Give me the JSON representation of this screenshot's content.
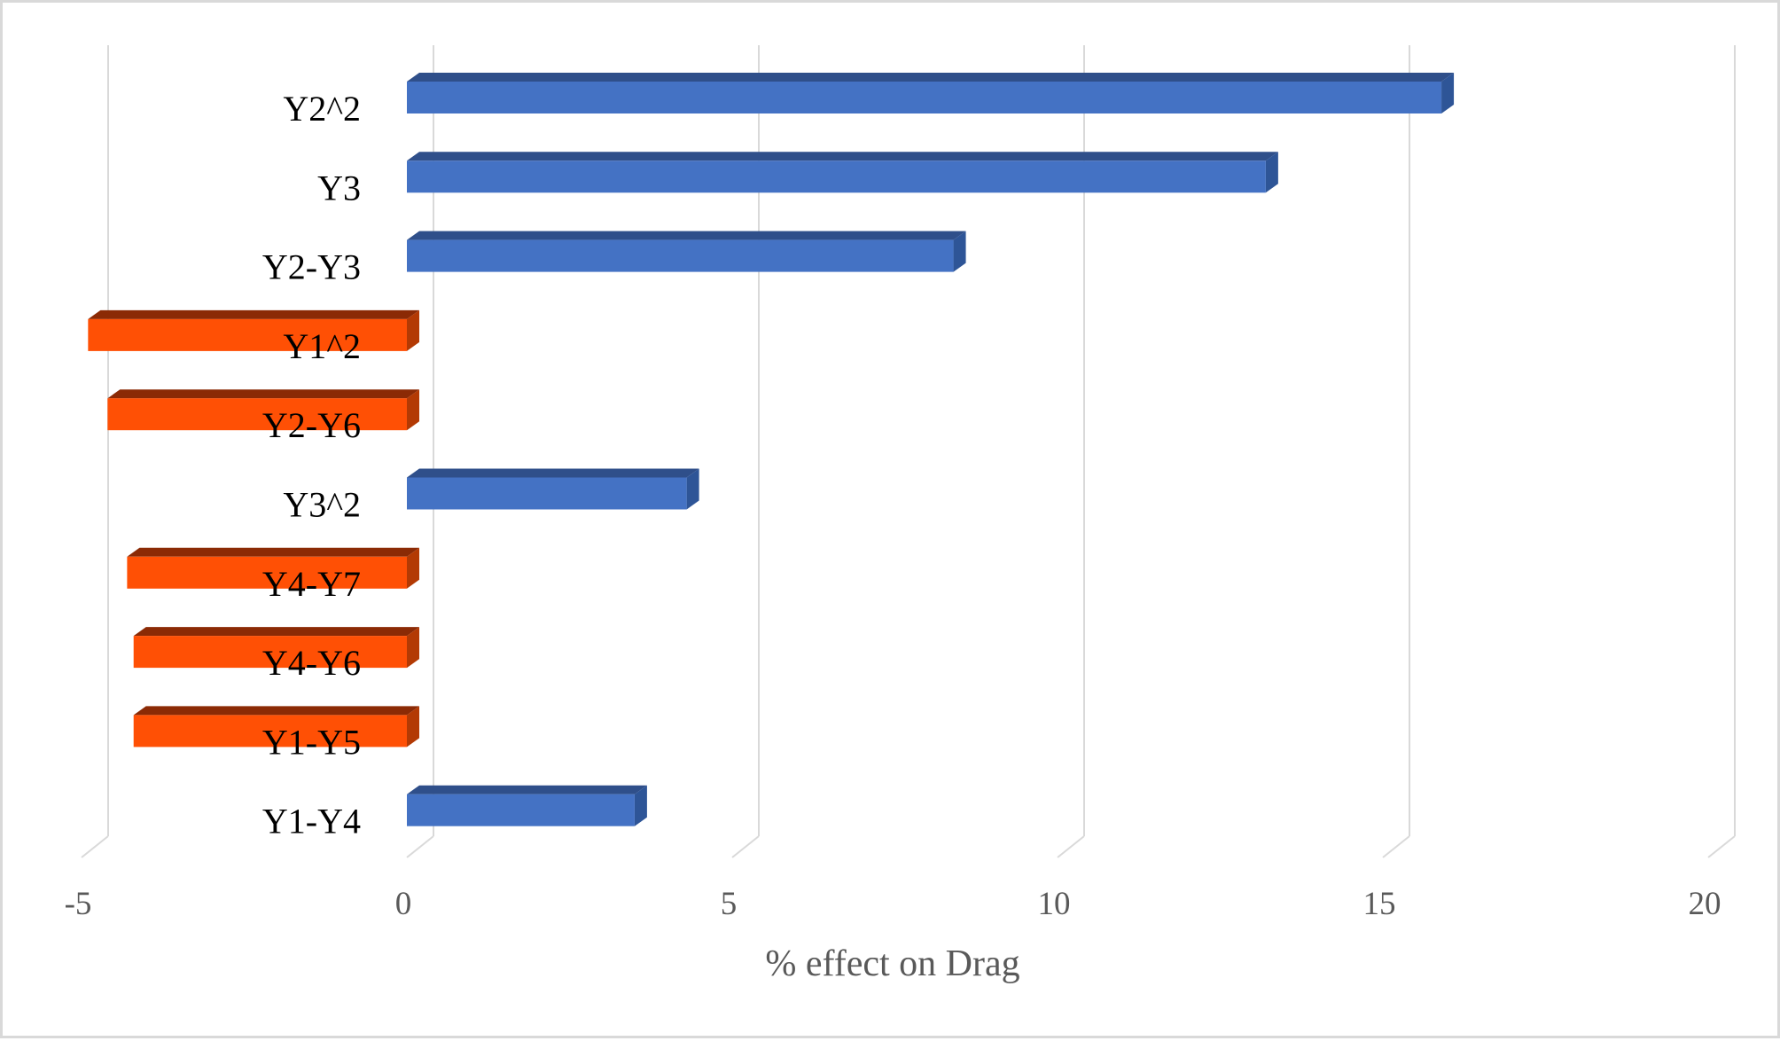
{
  "chart_data": {
    "type": "bar",
    "orientation": "horizontal",
    "style": "3d",
    "title": "",
    "xlabel": "% effect on Drag",
    "ylabel": "",
    "xlim": [
      -5,
      20
    ],
    "xticks": [
      "-5",
      "0",
      "5",
      "10",
      "15",
      "20"
    ],
    "grid": true,
    "categories": [
      "Y2^2",
      "Y3",
      "Y2-Y3",
      "Y1^2",
      "Y2-Y6",
      "Y3^2",
      "Y4-Y7",
      "Y4-Y6",
      "Y1-Y5",
      "Y1-Y4"
    ],
    "values": [
      15.9,
      13.2,
      8.4,
      -4.9,
      -4.6,
      4.3,
      -4.3,
      -4.2,
      -4.2,
      3.5
    ],
    "colors": {
      "positive_front": "#4472C4",
      "positive_top": "#2F4F8A",
      "positive_side": "#2E5597",
      "negative_front": "#FF5005",
      "negative_top": "#8B2A05",
      "negative_side": "#B33A04",
      "gridline": "#d9d9d9"
    }
  }
}
